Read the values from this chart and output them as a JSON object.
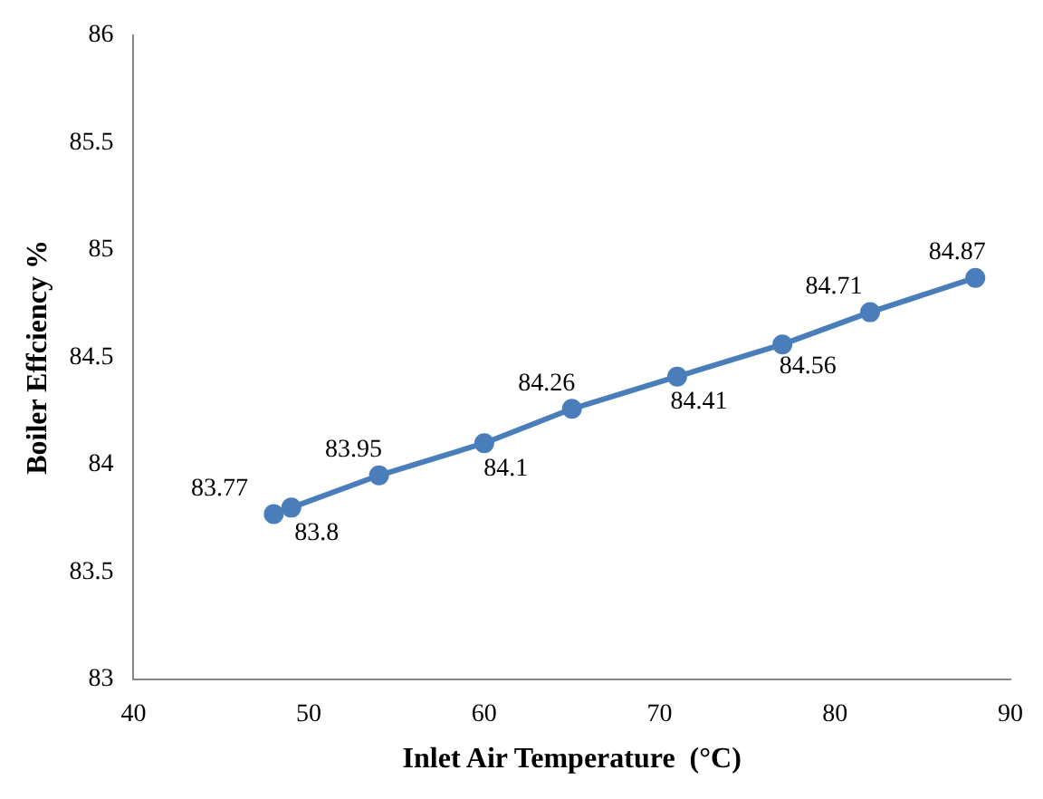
{
  "chart_data": {
    "type": "line",
    "xlabel": "Inlet Air Temperature  (°C)",
    "ylabel": "Boiler Effciency %",
    "x": [
      48,
      49,
      54,
      60,
      65,
      71,
      77,
      82,
      88
    ],
    "series": [
      {
        "color": "#4a7ebb",
        "values": [
          83.77,
          83.8,
          83.95,
          84.1,
          84.26,
          84.41,
          84.56,
          84.71,
          84.87
        ]
      }
    ],
    "xlim": [
      40,
      90
    ],
    "xticks": [
      40,
      50,
      60,
      70,
      80,
      90
    ],
    "ylim": [
      83,
      86
    ],
    "yticks": [
      83,
      83.5,
      84,
      84.5,
      85,
      85.5,
      86
    ],
    "grid": false,
    "legend": false,
    "marker": "circle",
    "line_style": "solid",
    "data_labels": true
  }
}
